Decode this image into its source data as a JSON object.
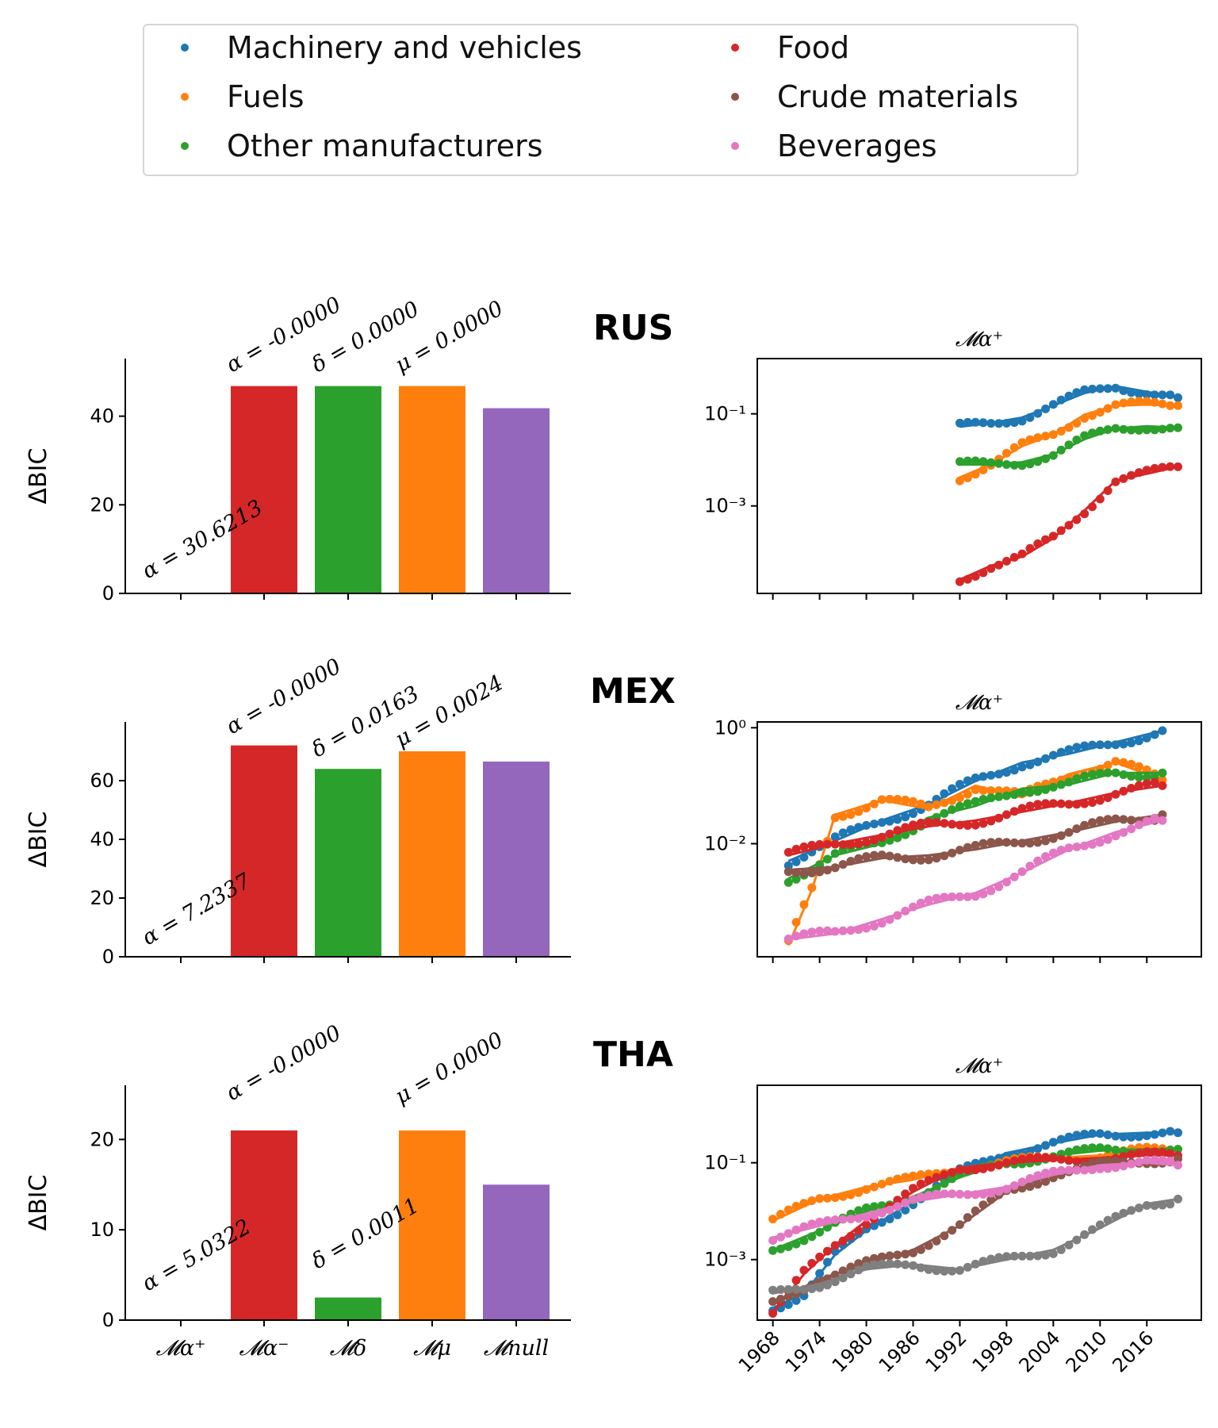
{
  "legend": {
    "items": [
      {
        "label": "Machinery and vehicles",
        "color": "#1f77b4"
      },
      {
        "label": "Fuels",
        "color": "#ff7f0e"
      },
      {
        "label": "Other manufacturers",
        "color": "#2ca02c"
      },
      {
        "label": "Food",
        "color": "#d62728"
      },
      {
        "label": "Crude materials",
        "color": "#8c564b"
      },
      {
        "label": "Beverages",
        "color": "#e377c2"
      }
    ]
  },
  "bar_categories": [
    "𝓜α⁺",
    "𝓜α⁻",
    "𝓜δ",
    "𝓜μ",
    "𝓜null"
  ],
  "bar_colors": [
    "#d62728",
    "#d62728",
    "#2ca02c",
    "#ff7f0e",
    "#9467bd"
  ],
  "year_ticks": [
    "1968",
    "1974",
    "1980",
    "1986",
    "1992",
    "1998",
    "2004",
    "2010",
    "2016"
  ],
  "chart_data": [
    {
      "type": "bar",
      "country": "RUS",
      "ylabel": "ΔBIC",
      "categories": [
        "𝓜α⁺",
        "𝓜α⁻",
        "𝓜δ",
        "𝓜μ",
        "𝓜null"
      ],
      "values": [
        0,
        46.8,
        46.8,
        46.8,
        41.8
      ],
      "ylim": [
        0,
        53
      ],
      "yticks": [
        0,
        20,
        40
      ],
      "annotations": [
        "α = 30.6213",
        "α = -0.0000",
        "δ = 0.0000",
        "μ = 0.0000"
      ]
    },
    {
      "type": "scatter",
      "country": "RUS",
      "title": "𝓜α⁺",
      "yscale": "log",
      "ytick_labels": [
        "10⁻¹",
        "10⁻³"
      ],
      "xlim": [
        1966,
        2023
      ],
      "ylim_log10": [
        -4.9,
        0.2
      ],
      "series": [
        {
          "name": "Machinery and vehicles",
          "points": [
            [
              1992,
              -1.28
            ],
            [
              1996,
              -1.2
            ],
            [
              2000,
              -1.08
            ],
            [
              2004,
              -0.82
            ],
            [
              2008,
              -0.55
            ],
            [
              2012,
              -0.4
            ],
            [
              2016,
              -0.52
            ],
            [
              2020,
              -0.65
            ]
          ]
        },
        {
          "name": "Fuels",
          "points": [
            [
              1992,
              -2.38
            ],
            [
              1996,
              -2.1
            ],
            [
              2000,
              -1.7
            ],
            [
              2004,
              -1.45
            ],
            [
              2008,
              -1.02
            ],
            [
              2012,
              -0.82
            ],
            [
              2016,
              -0.8
            ],
            [
              2020,
              -0.82
            ]
          ]
        },
        {
          "name": "Other manufacturers",
          "points": [
            [
              1992,
              -2.1
            ],
            [
              1996,
              -2.1
            ],
            [
              2000,
              -2.05
            ],
            [
              2004,
              -1.88
            ],
            [
              2008,
              -1.55
            ],
            [
              2012,
              -1.32
            ],
            [
              2016,
              -1.27
            ],
            [
              2020,
              -1.3
            ]
          ]
        },
        {
          "name": "Food",
          "points": [
            [
              1992,
              -4.6
            ],
            [
              1996,
              -4.3
            ],
            [
              2000,
              -4.1
            ],
            [
              2004,
              -3.7
            ],
            [
              2008,
              -3.1
            ],
            [
              2012,
              -2.45
            ],
            [
              2016,
              -2.3
            ],
            [
              2020,
              -2.15
            ]
          ]
        }
      ]
    },
    {
      "type": "bar",
      "country": "MEX",
      "ylabel": "ΔBIC",
      "categories": [
        "𝓜α⁺",
        "𝓜α⁻",
        "𝓜δ",
        "𝓜μ",
        "𝓜null"
      ],
      "values": [
        0,
        72,
        64,
        70,
        66.5
      ],
      "ylim": [
        0,
        80
      ],
      "yticks": [
        0,
        20,
        40,
        60
      ],
      "annotations": [
        "α = 7.2337",
        "α = -0.0000",
        "δ = 0.0163",
        "μ = 0.0024"
      ]
    },
    {
      "type": "scatter",
      "country": "MEX",
      "title": "𝓜α⁺",
      "yscale": "log",
      "ytick_labels": [
        "10⁰",
        "10⁻²"
      ],
      "xlim": [
        1966,
        2023
      ],
      "ylim_log10": [
        -3.95,
        0.1
      ],
      "series": [
        {
          "name": "Machinery and vehicles",
          "points": [
            [
              1970,
              -2.3
            ],
            [
              1976,
              -1.95
            ],
            [
              1982,
              -1.6
            ],
            [
              1988,
              -1.32
            ],
            [
              1994,
              -0.92
            ],
            [
              2000,
              -0.6
            ],
            [
              2006,
              -0.45
            ],
            [
              2012,
              -0.25
            ],
            [
              2018,
              -0.05
            ]
          ]
        },
        {
          "name": "Fuels",
          "points": [
            [
              1970,
              -3.75
            ],
            [
              1973,
              -2.8
            ],
            [
              1976,
              -1.5
            ],
            [
              1982,
              -1.25
            ],
            [
              1988,
              -1.4
            ],
            [
              1994,
              -1.0
            ],
            [
              2000,
              -1.2
            ],
            [
              2006,
              -0.8
            ],
            [
              2012,
              -0.6
            ],
            [
              2018,
              -0.9
            ]
          ]
        },
        {
          "name": "Other manufacturers",
          "points": [
            [
              1970,
              -2.6
            ],
            [
              1976,
              -2.2
            ],
            [
              1982,
              -2.0
            ],
            [
              1988,
              -1.55
            ],
            [
              1994,
              -1.35
            ],
            [
              2000,
              -1.05
            ],
            [
              2006,
              -0.98
            ],
            [
              2012,
              -0.78
            ],
            [
              2018,
              -0.78
            ]
          ]
        },
        {
          "name": "Food",
          "points": [
            [
              1970,
              -2.2
            ],
            [
              1976,
              -2.0
            ],
            [
              1982,
              -1.85
            ],
            [
              1988,
              -1.7
            ],
            [
              1994,
              -1.6
            ],
            [
              2000,
              -1.45
            ],
            [
              2006,
              -1.3
            ],
            [
              2012,
              -1.12
            ],
            [
              2018,
              -1.0
            ]
          ]
        },
        {
          "name": "Crude materials",
          "points": [
            [
              1970,
              -2.45
            ],
            [
              1976,
              -2.4
            ],
            [
              1982,
              -2.25
            ],
            [
              1988,
              -2.2
            ],
            [
              1994,
              -2.1
            ],
            [
              2000,
              -1.95
            ],
            [
              2006,
              -1.8
            ],
            [
              2012,
              -1.62
            ],
            [
              2018,
              -1.5
            ]
          ]
        },
        {
          "name": "Beverages",
          "points": [
            [
              1970,
              -3.65
            ],
            [
              1976,
              -3.55
            ],
            [
              1982,
              -3.3
            ],
            [
              1988,
              -3.05
            ],
            [
              1994,
              -2.85
            ],
            [
              2000,
              -2.5
            ],
            [
              2006,
              -2.1
            ],
            [
              2012,
              -1.8
            ],
            [
              2018,
              -1.6
            ]
          ]
        }
      ]
    },
    {
      "type": "bar",
      "country": "THA",
      "ylabel": "ΔBIC",
      "categories": [
        "𝓜α⁺",
        "𝓜α⁻",
        "𝓜δ",
        "𝓜μ",
        "𝓜null"
      ],
      "values": [
        0,
        21,
        2.5,
        21,
        15
      ],
      "ylim": [
        0,
        26
      ],
      "yticks": [
        0,
        10,
        20
      ],
      "annotations": [
        "α = 5.0322",
        "α = -0.0000",
        "δ = 0.0011",
        "μ = 0.0000"
      ]
    },
    {
      "type": "scatter",
      "country": "THA",
      "title": "𝓜α⁺",
      "yscale": "log",
      "ytick_labels": [
        "10⁻¹",
        "10⁻³"
      ],
      "xlabel_ticks": [
        "1968",
        "1974",
        "1980",
        "1986",
        "1992",
        "1998",
        "2004",
        "2010",
        "2016"
      ],
      "xlim": [
        1966,
        2023
      ],
      "ylim_log10": [
        -4.25,
        0.6
      ],
      "series": [
        {
          "name": "Machinery and vehicles",
          "points": [
            [
              1968,
              -4.0
            ],
            [
              1972,
              -3.7
            ],
            [
              1976,
              -2.9
            ],
            [
              1980,
              -2.4
            ],
            [
              1986,
              -1.8
            ],
            [
              1992,
              -1.2
            ],
            [
              1998,
              -0.8
            ],
            [
              2004,
              -0.6
            ],
            [
              2010,
              -0.42
            ],
            [
              2016,
              -0.38
            ],
            [
              2020,
              -0.38
            ]
          ]
        },
        {
          "name": "Fuels",
          "points": [
            [
              1968,
              -2.2
            ],
            [
              1974,
              -1.75
            ],
            [
              1980,
              -1.5
            ],
            [
              1986,
              -1.35
            ],
            [
              1992,
              -1.1
            ],
            [
              1998,
              -1.0
            ],
            [
              2004,
              -0.9
            ],
            [
              2010,
              -0.85
            ],
            [
              2016,
              -0.75
            ],
            [
              2020,
              -0.72
            ]
          ]
        },
        {
          "name": "Other manufacturers",
          "points": [
            [
              1968,
              -2.8
            ],
            [
              1974,
              -2.4
            ],
            [
              1980,
              -2.0
            ],
            [
              1986,
              -1.7
            ],
            [
              1992,
              -1.3
            ],
            [
              1998,
              -1.0
            ],
            [
              2004,
              -0.85
            ],
            [
              2010,
              -0.75
            ],
            [
              2016,
              -0.72
            ],
            [
              2020,
              -0.72
            ]
          ]
        },
        {
          "name": "Food",
          "points": [
            [
              1968,
              -4.1
            ],
            [
              1972,
              -3.3
            ],
            [
              1976,
              -2.7
            ],
            [
              1980,
              -2.2
            ],
            [
              1986,
              -1.6
            ],
            [
              1992,
              -1.1
            ],
            [
              1998,
              -1.0
            ],
            [
              2004,
              -0.95
            ],
            [
              2010,
              -0.9
            ],
            [
              2016,
              -0.85
            ],
            [
              2020,
              -0.85
            ]
          ]
        },
        {
          "name": "Crude materials",
          "points": [
            [
              1968,
              -3.9
            ],
            [
              1974,
              -3.4
            ],
            [
              1980,
              -3.1
            ],
            [
              1986,
              -2.8
            ],
            [
              1992,
              -2.3
            ],
            [
              1998,
              -1.6
            ],
            [
              2004,
              -1.25
            ],
            [
              2010,
              -1.05
            ],
            [
              2016,
              -0.95
            ],
            [
              2020,
              -0.92
            ]
          ]
        },
        {
          "name": "Beverages",
          "points": [
            [
              1968,
              -2.55
            ],
            [
              1974,
              -2.3
            ],
            [
              1980,
              -2.05
            ],
            [
              1986,
              -1.8
            ],
            [
              1992,
              -1.65
            ],
            [
              1998,
              -1.5
            ],
            [
              2004,
              -1.25
            ],
            [
              2010,
              -1.05
            ],
            [
              2016,
              -1.0
            ],
            [
              2020,
              -1.05
            ]
          ]
        },
        {
          "name": "",
          "color": "#7f7f7f",
          "points": [
            [
              1968,
              -3.7
            ],
            [
              1974,
              -3.5
            ],
            [
              1980,
              -3.2
            ],
            [
              1986,
              -3.1
            ],
            [
              1992,
              -3.2
            ],
            [
              1998,
              -3.0
            ],
            [
              2004,
              -2.8
            ],
            [
              2010,
              -2.35
            ],
            [
              2016,
              -1.85
            ],
            [
              2020,
              -1.75
            ]
          ]
        }
      ]
    }
  ]
}
